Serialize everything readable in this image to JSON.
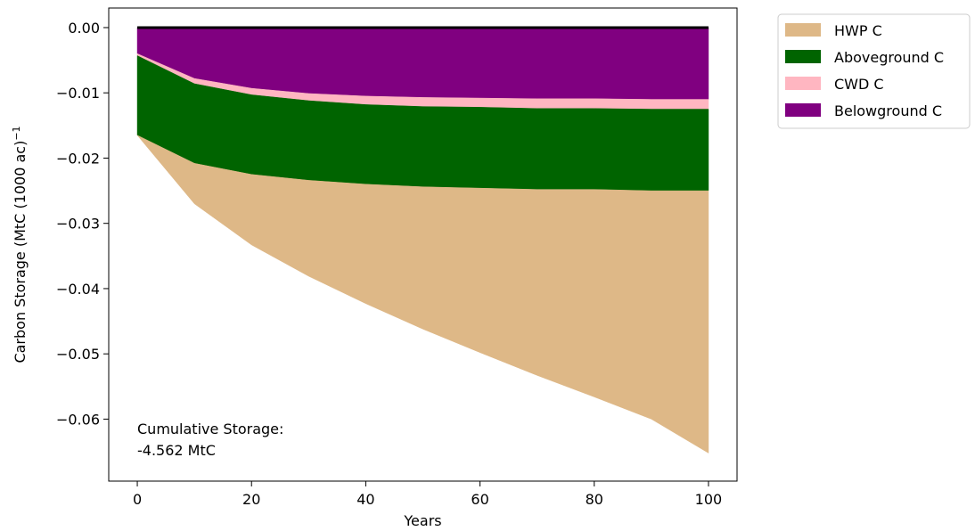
{
  "chart_data": {
    "type": "area",
    "xlabel": "Years",
    "ylabel": "Carbon Storage (MtC (1000 ac)",
    "ylabel_superscript": "−1",
    "xlim": [
      -5,
      105
    ],
    "ylim": [
      -0.0695,
      0.003
    ],
    "xticks": [
      0,
      20,
      40,
      60,
      80,
      100
    ],
    "yticks": [
      0.0,
      -0.01,
      -0.02,
      -0.03,
      -0.04,
      -0.05,
      -0.06
    ],
    "ytick_labels": [
      "0.00",
      "−0.01",
      "−0.02",
      "−0.03",
      "−0.04",
      "−0.05",
      "−0.06"
    ],
    "x": [
      0,
      10,
      20,
      30,
      40,
      50,
      60,
      70,
      80,
      90,
      100
    ],
    "stacking": "stacked downward from 0",
    "series": [
      {
        "name": "Belowground C",
        "color": "#800080",
        "values": [
          -0.004,
          -0.0078,
          -0.0093,
          -0.0101,
          -0.0105,
          -0.0107,
          -0.0108,
          -0.0109,
          -0.0109,
          -0.011,
          -0.011
        ]
      },
      {
        "name": "CWD C",
        "color": "#ffb6c1",
        "values": [
          -0.0003,
          -0.0008,
          -0.001,
          -0.0011,
          -0.0013,
          -0.0014,
          -0.0014,
          -0.0015,
          -0.0015,
          -0.0015,
          -0.0015
        ]
      },
      {
        "name": "Aboveground C",
        "color": "#006400",
        "values": [
          -0.0122,
          -0.0122,
          -0.0122,
          -0.0122,
          -0.0122,
          -0.0123,
          -0.0124,
          -0.0124,
          -0.0124,
          -0.0125,
          -0.0125
        ]
      },
      {
        "name": "HWP C",
        "color": "#deb887",
        "values": [
          0.0,
          -0.0062,
          -0.0108,
          -0.0147,
          -0.0183,
          -0.0218,
          -0.0252,
          -0.0285,
          -0.0318,
          -0.035,
          -0.0402
        ]
      }
    ],
    "legend_order": [
      "HWP C",
      "Aboveground C",
      "CWD C",
      "Belowground C"
    ],
    "legend_placement": "outside-top-right",
    "grid": false,
    "zero_line": true,
    "annotation": {
      "line1": "Cumulative Storage:",
      "line2": "-4.562 MtC"
    }
  }
}
